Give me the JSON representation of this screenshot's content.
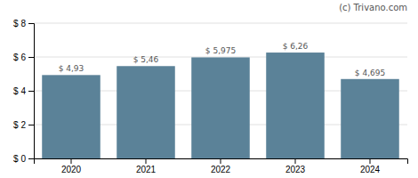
{
  "chart_data": {
    "type": "bar",
    "categories": [
      "2020",
      "2021",
      "2022",
      "2023",
      "2024"
    ],
    "values": [
      4.93,
      5.46,
      5.975,
      6.26,
      4.695
    ],
    "value_labels": [
      "$ 4,93",
      "$ 5,46",
      "$ 5,975",
      "$ 6,26",
      "$ 4,695"
    ],
    "data_labels": true,
    "color": "#5b8298",
    "ylim": [
      0,
      8
    ],
    "yticks": [
      {
        "value": 0,
        "label": "$ 0"
      },
      {
        "value": 2,
        "label": "$ 2"
      },
      {
        "value": 4,
        "label": "$ 4"
      },
      {
        "value": 6,
        "label": "$ 6"
      },
      {
        "value": 8,
        "label": "$ 8"
      }
    ],
    "grid": true,
    "annotations": [
      "(c) Trivano.com"
    ]
  }
}
